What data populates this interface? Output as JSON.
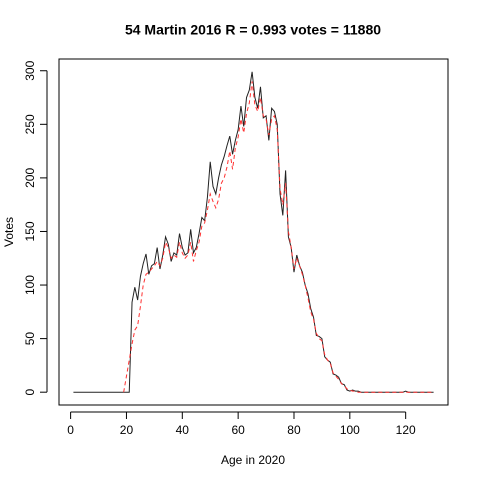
{
  "chart_data": {
    "type": "line",
    "title": "54 Martin 2016 R = 0.993 votes = 11880",
    "xlabel": "Age in 2020",
    "ylabel": "Votes",
    "x": [
      1,
      2,
      3,
      4,
      5,
      6,
      7,
      8,
      9,
      10,
      11,
      12,
      13,
      14,
      15,
      16,
      17,
      18,
      19,
      20,
      21,
      22,
      23,
      24,
      25,
      26,
      27,
      28,
      29,
      30,
      31,
      32,
      33,
      34,
      35,
      36,
      37,
      38,
      39,
      40,
      41,
      42,
      43,
      44,
      45,
      46,
      47,
      48,
      49,
      50,
      51,
      52,
      53,
      54,
      55,
      56,
      57,
      58,
      59,
      60,
      61,
      62,
      63,
      64,
      65,
      66,
      67,
      68,
      69,
      70,
      71,
      72,
      73,
      74,
      75,
      76,
      77,
      78,
      79,
      80,
      81,
      82,
      83,
      84,
      85,
      86,
      87,
      88,
      89,
      90,
      91,
      92,
      93,
      94,
      95,
      96,
      97,
      98,
      99,
      100,
      101,
      102,
      103,
      104,
      105,
      106,
      107,
      108,
      109,
      110,
      111,
      112,
      113,
      114,
      115,
      116,
      117,
      118,
      119,
      120,
      121,
      122,
      123,
      124,
      125,
      126,
      127,
      128,
      129,
      130
    ],
    "series": [
      {
        "color": "#222222",
        "dash": "solid",
        "values": [
          0,
          0,
          0,
          0,
          0,
          0,
          0,
          0,
          0,
          0,
          0,
          0,
          0,
          0,
          0,
          0,
          0,
          0,
          0,
          0,
          0,
          84,
          98,
          86,
          108,
          120,
          129,
          110,
          118,
          120,
          135,
          115,
          128,
          145,
          138,
          122,
          130,
          128,
          148,
          135,
          128,
          130,
          152,
          130,
          135,
          148,
          163,
          160,
          182,
          215,
          192,
          185,
          200,
          212,
          220,
          230,
          239,
          222,
          235,
          245,
          267,
          248,
          275,
          282,
          299,
          275,
          265,
          285,
          256,
          258,
          235,
          265,
          262,
          250,
          185,
          165,
          207,
          145,
          135,
          112,
          128,
          118,
          112,
          100,
          92,
          78,
          70,
          53,
          52,
          50,
          33,
          30,
          28,
          17,
          16,
          14,
          8,
          7,
          2,
          1,
          2,
          1,
          1,
          0,
          0,
          0,
          0,
          0,
          0,
          0,
          0,
          0,
          0,
          0,
          0,
          0,
          0,
          0,
          0,
          1,
          0,
          0,
          0,
          0,
          0,
          0,
          0,
          0,
          0,
          0
        ]
      },
      {
        "color": "#ff3030",
        "dash": "dashed",
        "values": [
          null,
          null,
          null,
          null,
          null,
          null,
          null,
          null,
          null,
          null,
          null,
          null,
          null,
          null,
          null,
          null,
          null,
          null,
          0,
          15,
          30,
          45,
          58,
          62,
          80,
          100,
          110,
          112,
          115,
          118,
          122,
          118,
          125,
          140,
          135,
          125,
          128,
          126,
          140,
          130,
          125,
          128,
          140,
          122,
          132,
          140,
          155,
          158,
          170,
          185,
          178,
          172,
          180,
          195,
          200,
          210,
          225,
          208,
          228,
          238,
          255,
          242,
          260,
          270,
          290,
          268,
          262,
          275,
          258,
          255,
          240,
          255,
          258,
          245,
          190,
          175,
          195,
          150,
          135,
          115,
          125,
          118,
          110,
          100,
          88,
          75,
          68,
          55,
          50,
          48,
          35,
          30,
          27,
          18,
          15,
          12,
          8,
          6,
          3,
          2,
          1,
          1,
          0,
          0,
          0,
          0,
          0,
          0,
          0,
          0,
          0,
          0,
          0,
          0,
          0,
          0,
          0,
          0,
          0,
          0,
          0,
          0,
          0,
          0,
          0,
          0,
          0,
          0,
          0,
          0
        ]
      }
    ],
    "xlim": [
      -4.16,
      135.16
    ],
    "ylim": [
      -11.96,
      310.96
    ],
    "xticks": [
      0,
      20,
      40,
      60,
      80,
      100,
      120
    ],
    "yticks": [
      0,
      50,
      100,
      150,
      200,
      250,
      300
    ]
  }
}
